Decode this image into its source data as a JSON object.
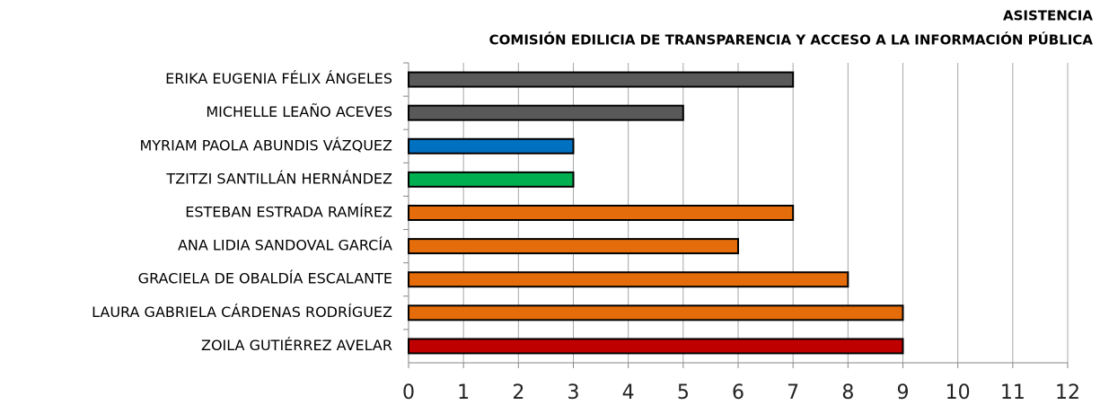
{
  "chart_data": {
    "type": "bar",
    "orientation": "horizontal",
    "title": "ASISTENCIA",
    "subtitle": "COMISIÓN EDILICIA DE TRANSPARENCIA Y ACCESO A LA INFORMACIÓN PÚBLICA",
    "categories": [
      "ERIKA EUGENIA FÉLIX ÁNGELES",
      "MICHELLE LEAÑO ACEVES",
      "MYRIAM PAOLA ABUNDIS VÁZQUEZ",
      "TZITZI SANTILLÁN HERNÁNDEZ",
      "ESTEBAN ESTRADA RAMÍREZ",
      "ANA LIDIA SANDOVAL GARCÍA",
      "GRACIELA DE OBALDÍA ESCALANTE",
      "LAURA GABRIELA CÁRDENAS RODRÍGUEZ",
      "ZOILA GUTIÉRREZ AVELAR"
    ],
    "values": [
      7,
      5,
      3,
      3,
      7,
      6,
      8,
      9,
      9
    ],
    "colors": [
      "#595959",
      "#595959",
      "#0070c0",
      "#00b050",
      "#e46c0a",
      "#e46c0a",
      "#e46c0a",
      "#e46c0a",
      "#c00000"
    ],
    "xlim": [
      0,
      12
    ],
    "xticks": [
      0,
      1,
      2,
      3,
      4,
      5,
      6,
      7,
      8,
      9,
      10,
      11,
      12
    ],
    "grid": true
  }
}
